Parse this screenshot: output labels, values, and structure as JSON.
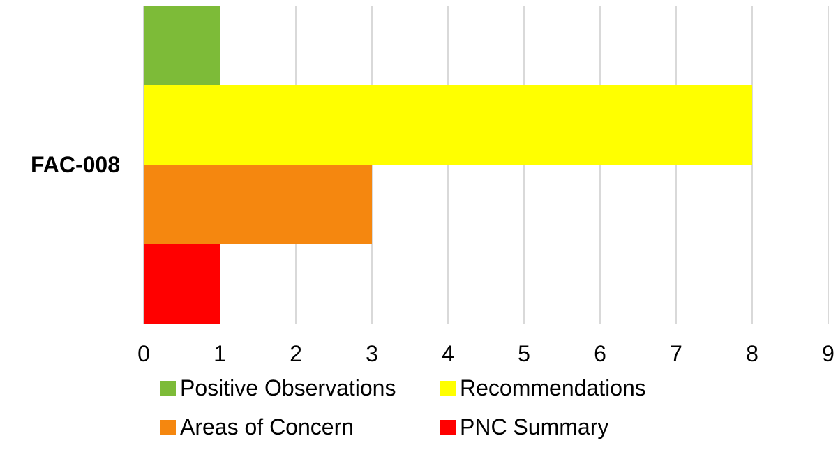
{
  "chart_data": {
    "type": "bar",
    "orientation": "horizontal",
    "categories": [
      "FAC-008"
    ],
    "series": [
      {
        "name": "Positive Observations",
        "values": [
          1
        ],
        "color": "#7DBB38"
      },
      {
        "name": "Recommendations",
        "values": [
          8
        ],
        "color": "#FFFF00"
      },
      {
        "name": "Areas of Concern",
        "values": [
          3
        ],
        "color": "#F5870F"
      },
      {
        "name": "PNC Summary",
        "values": [
          1
        ],
        "color": "#FF0000"
      }
    ],
    "xlim": [
      0,
      9
    ],
    "xticks": [
      "0",
      "1",
      "2",
      "3",
      "4",
      "5",
      "6",
      "7",
      "8",
      "9"
    ],
    "grid": true,
    "legend_position": "bottom"
  }
}
